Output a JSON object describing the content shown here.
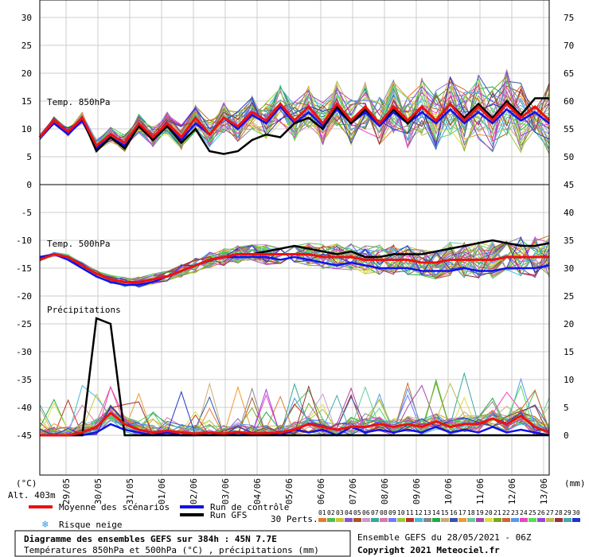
{
  "chart_data": {
    "type": "line",
    "title": "Diagramme des ensembles GEFS sur 384h : 45N 7.7E",
    "subtitle": "Températures 850hPa et 500hPa (°C) , précipitations (mm)",
    "left_axis_unit": "(°C)",
    "right_axis_unit": "(mm)",
    "altitude": "Alt. 403m",
    "x_dates": [
      "29/05",
      "30/05",
      "31/05",
      "01/06",
      "02/06",
      "03/06",
      "04/06",
      "05/06",
      "06/06",
      "07/06",
      "08/06",
      "09/06",
      "10/06",
      "11/06",
      "12/06",
      "13/06"
    ],
    "panels": {
      "t850": {
        "label": "Temp. 850hPa",
        "left_ticks": [
          "30",
          "25",
          "20",
          "15",
          "10",
          "5",
          "0"
        ],
        "right_ticks": [
          "75",
          "70",
          "65",
          "60",
          "55",
          "50"
        ],
        "ylim": [
          0,
          30
        ],
        "grid": true
      },
      "t500": {
        "label": "Temp. 500hPa",
        "left_ticks": [
          "-5",
          "-10",
          "-15",
          "-20",
          "-25",
          "-30",
          "-35",
          "-40",
          "-45"
        ],
        "ylim": [
          -45,
          0
        ],
        "grid": true
      },
      "precip": {
        "label": "Précipitations",
        "right_ticks": [
          "45",
          "40",
          "35",
          "30",
          "25",
          "20",
          "15",
          "10",
          "5",
          "0"
        ],
        "ylim": [
          0,
          45
        ],
        "grid": true
      }
    },
    "series": [
      {
        "name": "Moyenne des scénarios",
        "color": "#ee1111",
        "t850": [
          8.5,
          11.5,
          9.5,
          12,
          7,
          9,
          7.5,
          11,
          8.5,
          11,
          8.5,
          12,
          9,
          12,
          10.5,
          13,
          11.5,
          14.5,
          11.5,
          14,
          11,
          14.5,
          11.5,
          14,
          11,
          14,
          11.5,
          14,
          11.5,
          14.5,
          11.5,
          14,
          11.5,
          14.5,
          12,
          14,
          11.5
        ],
        "t500": [
          -13.5,
          -12.5,
          -13,
          -14.5,
          -16,
          -17,
          -17.5,
          -17.5,
          -17,
          -16.5,
          -15.5,
          -14.5,
          -13.5,
          -13,
          -12.5,
          -12.5,
          -12.5,
          -12.5,
          -12.5,
          -12.5,
          -13,
          -13,
          -13,
          -13.5,
          -13.5,
          -13.5,
          -13.5,
          -14,
          -14,
          -13.5,
          -13.5,
          -13.5,
          -13.5,
          -13,
          -13,
          -13,
          -13
        ],
        "precip": [
          0,
          0,
          0,
          0.5,
          1.5,
          4,
          2,
          1,
          0.5,
          0.8,
          0.5,
          0.3,
          0.5,
          0.3,
          0.6,
          0.3,
          0.4,
          0.5,
          1,
          2,
          1.5,
          1,
          1.5,
          1.5,
          2,
          1.5,
          2,
          1.5,
          2.5,
          1.5,
          2,
          2,
          3,
          2,
          3.5,
          1.5,
          0.5
        ]
      },
      {
        "name": "Run de contrôle",
        "color": "#1111ee",
        "t850": [
          8.5,
          11,
          9,
          11.5,
          6.5,
          8.5,
          7,
          10.5,
          8,
          10.5,
          8,
          11,
          9,
          12,
          10,
          12.5,
          11,
          14,
          11,
          13,
          10.5,
          13.5,
          11,
          13,
          10.5,
          13,
          11,
          13,
          11,
          13.5,
          11,
          13,
          11,
          13.5,
          11.5,
          13,
          11
        ],
        "t500": [
          -13,
          -12.5,
          -13.5,
          -15,
          -16.5,
          -17.5,
          -18,
          -18,
          -17.5,
          -16.5,
          -15.5,
          -14.5,
          -13.5,
          -13,
          -13,
          -13,
          -13,
          -13.5,
          -13,
          -13.5,
          -14,
          -14.5,
          -14,
          -14.5,
          -15,
          -15,
          -15,
          -15.5,
          -15.5,
          -15.5,
          -15,
          -15.5,
          -15.5,
          -15,
          -15,
          -15,
          -14.5
        ],
        "precip": [
          0,
          0,
          0,
          0,
          0.5,
          2,
          1,
          0.5,
          0,
          0.5,
          0,
          0,
          0.5,
          0,
          0.5,
          0,
          0.5,
          0,
          1,
          0.5,
          1,
          0,
          1.5,
          0.5,
          1,
          0.5,
          1,
          0.5,
          1.5,
          0.5,
          1,
          0.5,
          1.5,
          0.5,
          1,
          0.5,
          0
        ]
      },
      {
        "name": "Run GFS",
        "color": "#000000",
        "t850": [
          8.5,
          11.5,
          9.5,
          12,
          6,
          8.5,
          6.5,
          10.5,
          8,
          10.5,
          7.5,
          10,
          6,
          5.5,
          6,
          8,
          9,
          8.5,
          11,
          12,
          10,
          14,
          11,
          13.5,
          11,
          13.5,
          11,
          14,
          11.5,
          14.5,
          12,
          14.5,
          12,
          15,
          12.5,
          15.5,
          15.5
        ],
        "t500": [
          -13.5,
          -12.5,
          -13,
          -14.5,
          -16,
          -17,
          -17.5,
          -17.5,
          -17,
          -16.5,
          -15.5,
          -14.5,
          -13.5,
          -13,
          -12.5,
          -12.5,
          -12,
          -11.5,
          -11,
          -11.5,
          -12,
          -12.5,
          -12,
          -13,
          -13,
          -12.5,
          -12.5,
          -12.5,
          -12,
          -11.5,
          -11,
          -10.5,
          -10,
          -10.5,
          -11,
          -11,
          -10.5
        ],
        "precip": [
          0,
          0,
          0,
          0,
          21,
          20,
          0,
          0,
          0,
          0,
          0,
          0,
          0,
          0,
          0,
          0,
          0,
          0,
          0,
          0,
          0,
          0,
          0,
          0,
          0,
          0,
          0,
          0,
          0,
          0,
          0,
          0,
          0,
          0,
          0,
          0,
          0
        ]
      }
    ],
    "perturbations": {
      "label": "30 Perts.",
      "numbers": [
        "01",
        "02",
        "03",
        "04",
        "05",
        "06",
        "07",
        "08",
        "09",
        "10",
        "11",
        "12",
        "13",
        "14",
        "15",
        "16",
        "17",
        "18",
        "19",
        "20",
        "21",
        "22",
        "23",
        "24",
        "25",
        "26",
        "27",
        "28",
        "29",
        "30"
      ],
      "colors": [
        "#e87c2c",
        "#55bb55",
        "#c8c830",
        "#8855cc",
        "#aa5522",
        "#cc99cc",
        "#33aa99",
        "#dd77aa",
        "#7777ff",
        "#99cc33",
        "#bb3322",
        "#44bbdd",
        "#888888",
        "#22aa44",
        "#ccaa77",
        "#3355aa",
        "#ee9933",
        "#66cc99",
        "#aa44aa",
        "#dddd44",
        "#77aa22",
        "#cc6633",
        "#5599ee",
        "#ee44bb",
        "#55dd55",
        "#9944dd",
        "#bbbb55",
        "#993333",
        "#44aaaa",
        "#2233cc"
      ]
    }
  },
  "legend": {
    "mean": "Moyenne des scénarios",
    "control": "Run de contrôle",
    "gfs": "Run GFS",
    "snow": "Risque neige",
    "perts_label": "30 Perts."
  },
  "footer": {
    "title": "Diagramme des ensembles GEFS sur 384h : 45N 7.7E",
    "subtitle": "Températures 850hPa et 500hPa (°C) , précipitations (mm)",
    "ensemble": "Ensemble GEFS du 28/05/2021 - 06Z",
    "copyright": "Copyright 2021 Meteociel.fr"
  },
  "colors": {
    "grid": "#cccccc",
    "mean": "#ee1111",
    "control": "#1111ee",
    "gfs": "#000000"
  }
}
